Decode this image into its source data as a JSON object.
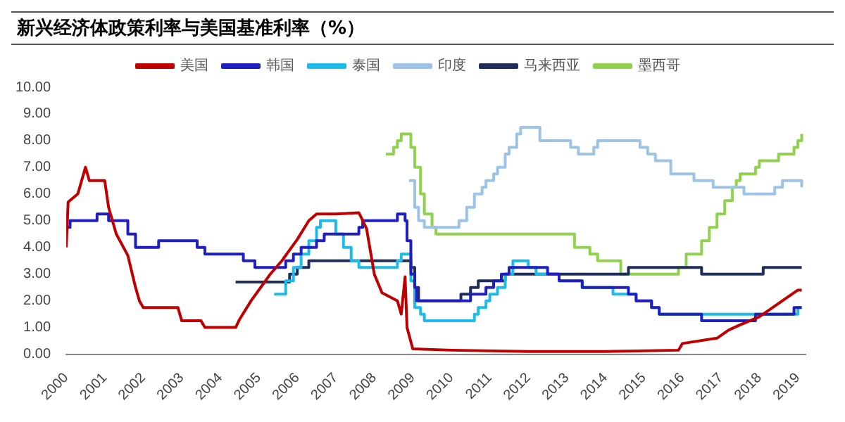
{
  "chart_data": {
    "type": "line",
    "title": "新兴经济体政策利率与美国基准利率（%）",
    "legend": "top",
    "grid": false,
    "xlim": [
      2000,
      2019.2
    ],
    "xticks": [
      2000,
      2001,
      2002,
      2003,
      2004,
      2005,
      2006,
      2007,
      2008,
      2009,
      2010,
      2011,
      2012,
      2013,
      2014,
      2015,
      2016,
      2017,
      2018,
      2019
    ],
    "ylim": [
      0,
      10
    ],
    "yticks": [
      {
        "value": 0,
        "label": "0.00"
      },
      {
        "value": 1,
        "label": "1.00"
      },
      {
        "value": 2,
        "label": "2.00"
      },
      {
        "value": 3,
        "label": "3.00"
      },
      {
        "value": 4,
        "label": "4.00"
      },
      {
        "value": 5,
        "label": "5.00"
      },
      {
        "value": 6,
        "label": "6.00"
      },
      {
        "value": 7,
        "label": "7.00"
      },
      {
        "value": 8,
        "label": "8.00"
      },
      {
        "value": 9,
        "label": "9.00"
      },
      {
        "value": 10,
        "label": "10.00"
      }
    ],
    "series": [
      {
        "name": "美国",
        "type": "line",
        "color": "#c00000",
        "x": [
          2000,
          2000.05,
          2000.3,
          2000.5,
          2000.6,
          2001.0,
          2001.1,
          2001.3,
          2001.6,
          2001.8,
          2001.9,
          2002.0,
          2002.5,
          2002.9,
          2003.0,
          2003.5,
          2003.6,
          2004.4,
          2004.5,
          2004.8,
          2005.0,
          2005.3,
          2005.6,
          2006.0,
          2006.3,
          2006.5,
          2007.0,
          2007.6,
          2007.8,
          2008.0,
          2008.2,
          2008.6,
          2008.7,
          2008.8,
          2008.85,
          2009.0,
          2010,
          2012,
          2014,
          2015.9,
          2016.0,
          2016.9,
          2017.2,
          2017.5,
          2018.0,
          2018.5,
          2019.0,
          2019.1
        ],
        "values": [
          4.0,
          5.7,
          6.0,
          7.0,
          6.5,
          6.5,
          5.5,
          4.5,
          3.7,
          2.5,
          2.0,
          1.75,
          1.75,
          1.75,
          1.25,
          1.25,
          1.0,
          1.0,
          1.3,
          2.0,
          2.4,
          3.0,
          3.5,
          4.3,
          5.0,
          5.25,
          5.25,
          5.3,
          4.7,
          3.0,
          2.3,
          2.0,
          1.5,
          2.9,
          1.0,
          0.2,
          0.15,
          0.1,
          0.1,
          0.15,
          0.4,
          0.6,
          0.9,
          1.1,
          1.4,
          1.9,
          2.4,
          2.4
        ]
      },
      {
        "name": "韩国",
        "type": "step",
        "color": "#1f1fbf",
        "x": [
          2000,
          2000.1,
          2000.8,
          2001.1,
          2001.6,
          2001.8,
          2002.4,
          2003.4,
          2003.6,
          2004.6,
          2004.9,
          2005.7,
          2005.9,
          2006.1,
          2006.5,
          2006.7,
          2007.6,
          2007.7,
          2008.6,
          2008.8,
          2008.85,
          2008.95,
          2009.05,
          2009.1,
          2010.5,
          2010.9,
          2011.1,
          2011.3,
          2011.5,
          2012.5,
          2012.8,
          2013.4,
          2014.6,
          2014.8,
          2015.2,
          2015.4,
          2016.5,
          2017.9,
          2018.9,
          2019.1
        ],
        "values": [
          4.75,
          5.0,
          5.25,
          5.0,
          4.5,
          4.0,
          4.25,
          4.0,
          3.75,
          3.5,
          3.25,
          3.5,
          3.75,
          4.0,
          4.25,
          4.5,
          4.75,
          5.0,
          5.25,
          5.0,
          4.25,
          3.0,
          2.5,
          2.0,
          2.25,
          2.5,
          2.75,
          3.0,
          3.25,
          3.0,
          2.75,
          2.5,
          2.25,
          2.0,
          1.75,
          1.5,
          1.25,
          1.5,
          1.75,
          1.75
        ]
      },
      {
        "name": "泰国",
        "type": "step",
        "color": "#1ebbe8",
        "x": [
          2005.4,
          2005.7,
          2005.9,
          2006.1,
          2006.3,
          2006.5,
          2006.6,
          2007.0,
          2007.2,
          2007.4,
          2007.6,
          2008.6,
          2008.7,
          2008.95,
          2009.05,
          2009.2,
          2009.3,
          2010.6,
          2010.7,
          2010.9,
          2011.0,
          2011.2,
          2011.4,
          2011.6,
          2012.0,
          2012.2,
          2012.8,
          2013.4,
          2014.2,
          2014.8,
          2015.2,
          2015.4,
          2019.0,
          2019.1
        ],
        "values": [
          2.25,
          2.75,
          3.25,
          3.75,
          4.25,
          4.75,
          5.0,
          4.5,
          4.0,
          3.5,
          3.25,
          3.5,
          3.75,
          2.75,
          1.75,
          1.5,
          1.25,
          1.5,
          1.75,
          2.0,
          2.25,
          2.5,
          3.0,
          3.5,
          3.25,
          3.0,
          2.75,
          2.5,
          2.25,
          2.0,
          1.75,
          1.5,
          1.75,
          1.75
        ]
      },
      {
        "name": "印度",
        "type": "step",
        "color": "#9dc3e6",
        "x": [
          2008.9,
          2009.05,
          2009.15,
          2009.3,
          2010.2,
          2010.4,
          2010.6,
          2010.8,
          2010.9,
          2011.1,
          2011.2,
          2011.4,
          2011.5,
          2011.7,
          2011.8,
          2012.3,
          2013.1,
          2013.3,
          2013.7,
          2013.8,
          2014.9,
          2015.1,
          2015.3,
          2015.7,
          2016.3,
          2016.8,
          2017.6,
          2018.4,
          2018.6,
          2019.1
        ],
        "values": [
          6.5,
          5.5,
          5.0,
          4.75,
          5.0,
          5.5,
          6.0,
          6.25,
          6.5,
          6.75,
          7.0,
          7.5,
          7.75,
          8.25,
          8.5,
          8.0,
          7.75,
          7.5,
          7.75,
          8.0,
          7.75,
          7.5,
          7.25,
          6.75,
          6.5,
          6.25,
          6.0,
          6.25,
          6.5,
          6.25
        ]
      },
      {
        "name": "马来西亚",
        "type": "step",
        "color": "#1f2d5a",
        "x": [
          2004.4,
          2005.8,
          2006.0,
          2006.3,
          2008.95,
          2009.05,
          2009.15,
          2010.25,
          2010.5,
          2010.7,
          2011.4,
          2014.6,
          2016.5,
          2018.1,
          2019.1
        ],
        "values": [
          2.7,
          3.0,
          3.25,
          3.5,
          3.25,
          2.5,
          2.0,
          2.25,
          2.5,
          2.75,
          3.0,
          3.25,
          3.0,
          3.25,
          3.25
        ]
      },
      {
        "name": "墨西哥",
        "type": "step",
        "color": "#92d050",
        "x": [
          2008.3,
          2008.5,
          2008.6,
          2008.7,
          2008.95,
          2009.05,
          2009.2,
          2009.3,
          2009.5,
          2009.6,
          2013.2,
          2013.6,
          2013.8,
          2014.4,
          2015.9,
          2016.1,
          2016.5,
          2016.7,
          2016.9,
          2017.1,
          2017.3,
          2017.4,
          2017.5,
          2017.9,
          2018.0,
          2018.5,
          2018.9,
          2019.0,
          2019.1
        ],
        "values": [
          7.5,
          7.75,
          8.0,
          8.25,
          7.75,
          7.0,
          6.0,
          5.25,
          4.75,
          4.5,
          4.0,
          3.75,
          3.5,
          3.0,
          3.25,
          3.75,
          4.25,
          4.75,
          5.25,
          5.75,
          6.25,
          6.5,
          6.75,
          7.0,
          7.25,
          7.5,
          7.75,
          8.0,
          8.25
        ]
      }
    ]
  }
}
